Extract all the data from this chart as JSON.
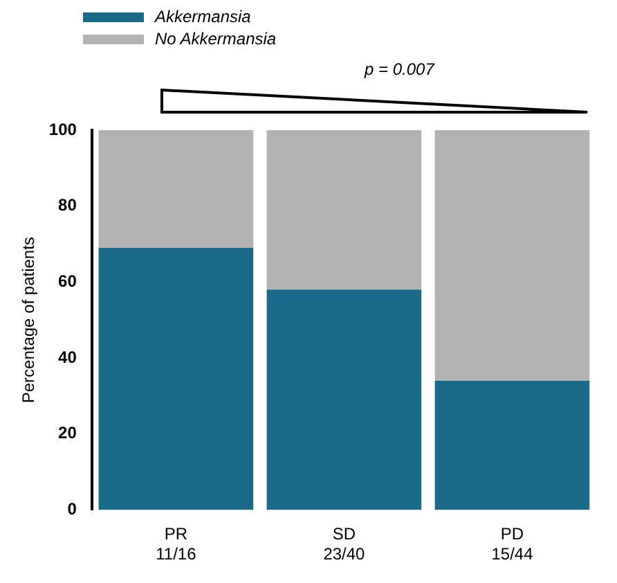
{
  "chart_data": {
    "type": "bar",
    "stacked": true,
    "categories": [
      "PR\n11/16",
      "SD\n23/40",
      "PD\n15/44"
    ],
    "series": [
      {
        "name": "Akkermansia",
        "color": "#1b6a8a",
        "values": [
          69,
          58,
          34
        ]
      },
      {
        "name": "No Akkermansia",
        "color": "#b3b3b3",
        "values": [
          31,
          42,
          66
        ]
      }
    ],
    "ylabel": "Percentage of patients",
    "ylim": [
      0,
      100
    ],
    "yticks": [
      0,
      20,
      40,
      60,
      80,
      100
    ],
    "grid": false,
    "legend": "top left",
    "annotations": [
      "p = 0.007"
    ]
  }
}
